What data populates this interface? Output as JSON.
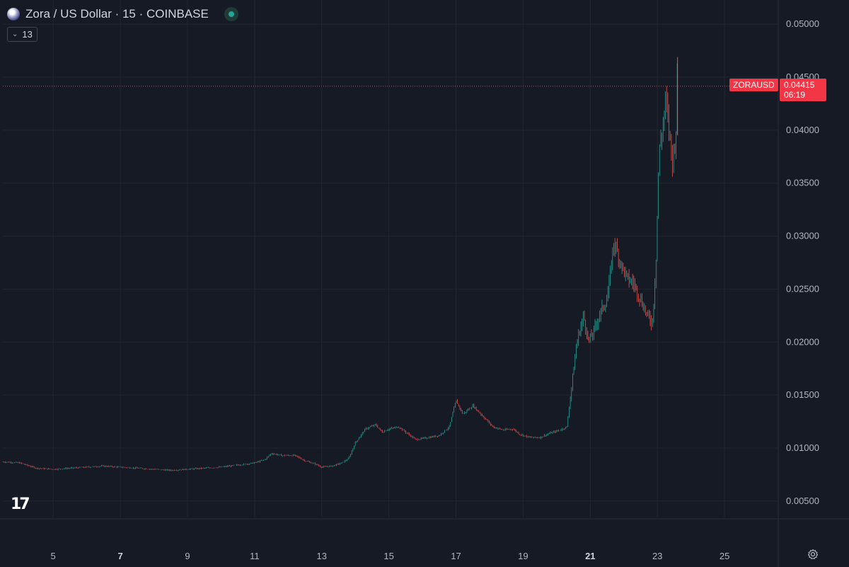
{
  "header": {
    "title": "Zora / US Dollar · 15 · COINBASE",
    "indicator_count": "13"
  },
  "price_tag": {
    "symbol": "ZORAUSD",
    "price": "0.04415",
    "countdown": "06:19"
  },
  "colors": {
    "up": "#26a69a",
    "down": "#ef5350",
    "price_line": "#f23645",
    "background": "#161a25",
    "grid": "#232632"
  },
  "icons": {
    "logo": "zora-orb-icon",
    "status": "market-open-dot-icon",
    "settings": "gear-icon",
    "brand": "tradingview-logo"
  },
  "chart_data": {
    "type": "candlestick",
    "title": "Zora / US Dollar · 15 · COINBASE",
    "interval": "15",
    "exchange": "COINBASE",
    "x_ticks": [
      {
        "label": "5",
        "day": 5,
        "bold": false
      },
      {
        "label": "7",
        "day": 7,
        "bold": true
      },
      {
        "label": "9",
        "day": 9,
        "bold": false
      },
      {
        "label": "11",
        "day": 11,
        "bold": false
      },
      {
        "label": "13",
        "day": 13,
        "bold": false
      },
      {
        "label": "15",
        "day": 15,
        "bold": false
      },
      {
        "label": "17",
        "day": 17,
        "bold": false
      },
      {
        "label": "19",
        "day": 19,
        "bold": false
      },
      {
        "label": "21",
        "day": 21,
        "bold": true
      },
      {
        "label": "23",
        "day": 23,
        "bold": false
      },
      {
        "label": "25",
        "day": 25,
        "bold": false
      }
    ],
    "y_ticks": [
      "0.05000",
      "0.04500",
      "0.04000",
      "0.03500",
      "0.03000",
      "0.02500",
      "0.02000",
      "0.01500",
      "0.01000",
      "0.00500"
    ],
    "xlim": [
      3.5,
      26.6
    ],
    "ylim": [
      0.00345,
      0.05175
    ],
    "current_price": 0.04415,
    "grid": true,
    "series_path": [
      [
        3.5,
        0.0087
      ],
      [
        4.0,
        0.0086
      ],
      [
        4.5,
        0.0081
      ],
      [
        5.0,
        0.008
      ],
      [
        5.5,
        0.0081
      ],
      [
        6.0,
        0.0082
      ],
      [
        6.5,
        0.0083
      ],
      [
        7.0,
        0.0082
      ],
      [
        7.5,
        0.0081
      ],
      [
        8.0,
        0.008
      ],
      [
        8.5,
        0.0079
      ],
      [
        9.0,
        0.008
      ],
      [
        9.5,
        0.0081
      ],
      [
        10.0,
        0.0082
      ],
      [
        10.5,
        0.0084
      ],
      [
        11.0,
        0.0086
      ],
      [
        11.3,
        0.0089
      ],
      [
        11.5,
        0.0095
      ],
      [
        11.8,
        0.0093
      ],
      [
        12.2,
        0.0093
      ],
      [
        12.5,
        0.0088
      ],
      [
        12.8,
        0.0085
      ],
      [
        13.0,
        0.0082
      ],
      [
        13.3,
        0.0083
      ],
      [
        13.6,
        0.0086
      ],
      [
        13.8,
        0.009
      ],
      [
        14.0,
        0.0105
      ],
      [
        14.3,
        0.0118
      ],
      [
        14.6,
        0.0122
      ],
      [
        14.8,
        0.0115
      ],
      [
        15.0,
        0.0118
      ],
      [
        15.3,
        0.012
      ],
      [
        15.5,
        0.0115
      ],
      [
        15.8,
        0.0108
      ],
      [
        16.2,
        0.011
      ],
      [
        16.5,
        0.0112
      ],
      [
        16.8,
        0.012
      ],
      [
        17.0,
        0.0145
      ],
      [
        17.2,
        0.0132
      ],
      [
        17.5,
        0.014
      ],
      [
        17.8,
        0.013
      ],
      [
        18.1,
        0.012
      ],
      [
        18.4,
        0.0117
      ],
      [
        18.7,
        0.0118
      ],
      [
        18.9,
        0.0113
      ],
      [
        19.2,
        0.011
      ],
      [
        19.5,
        0.011
      ],
      [
        19.8,
        0.0114
      ],
      [
        20.1,
        0.0117
      ],
      [
        20.3,
        0.012
      ],
      [
        20.45,
        0.016
      ],
      [
        20.6,
        0.02
      ],
      [
        20.8,
        0.0225
      ],
      [
        20.95,
        0.02
      ],
      [
        21.1,
        0.021
      ],
      [
        21.3,
        0.0228
      ],
      [
        21.5,
        0.024
      ],
      [
        21.6,
        0.0265
      ],
      [
        21.7,
        0.0295
      ],
      [
        21.9,
        0.0275
      ],
      [
        22.1,
        0.026
      ],
      [
        22.3,
        0.0255
      ],
      [
        22.5,
        0.024
      ],
      [
        22.7,
        0.0225
      ],
      [
        22.85,
        0.0218
      ],
      [
        22.95,
        0.027
      ],
      [
        23.05,
        0.038
      ],
      [
        23.15,
        0.04
      ],
      [
        23.25,
        0.043
      ],
      [
        23.35,
        0.04
      ],
      [
        23.45,
        0.037
      ],
      [
        23.55,
        0.0395
      ],
      [
        23.6,
        0.0465
      ],
      [
        23.62,
        0.0441
      ]
    ]
  }
}
